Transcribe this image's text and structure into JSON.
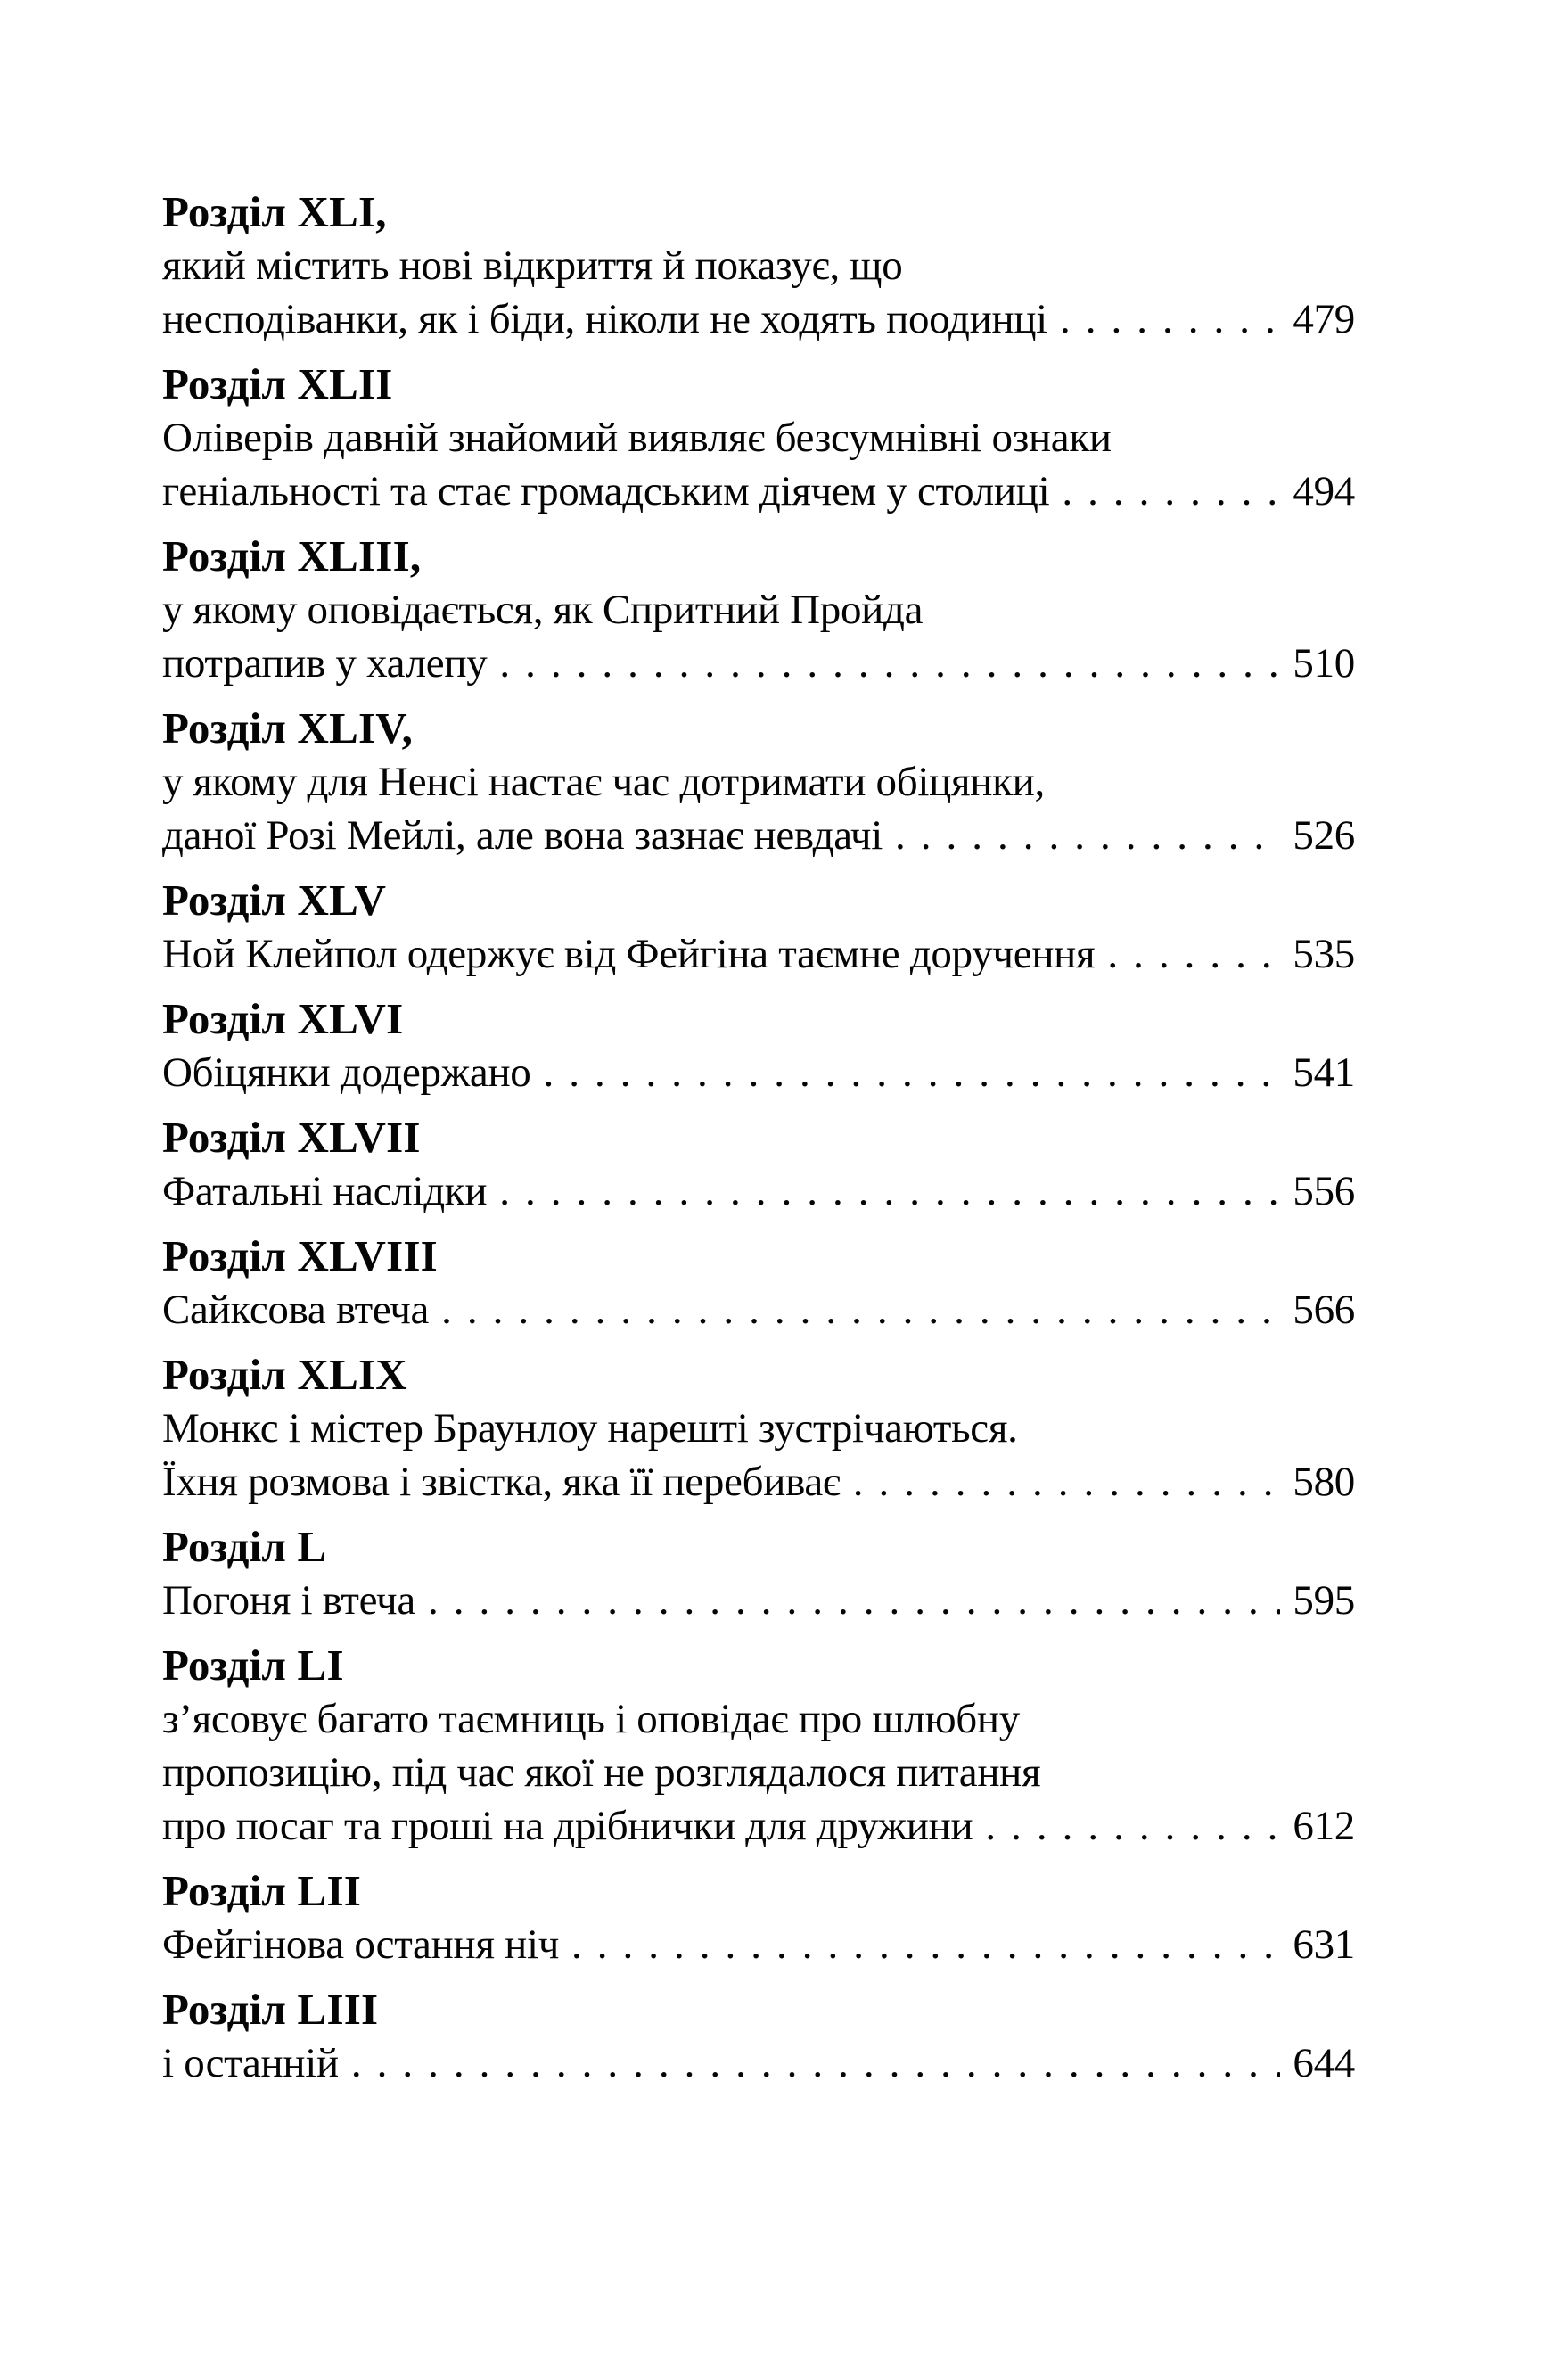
{
  "page": {
    "background": "#ffffff",
    "text_color": "#050505",
    "kind": "table-of-contents"
  },
  "toc": {
    "entries": [
      {
        "heading": "Розділ XLI,",
        "lines": [
          "який містить нові відкриття й показує, що"
        ],
        "last_line": "несподіванки, як і біди, ніколи не ходять поодинці",
        "page": "479"
      },
      {
        "heading": "Розділ XLII",
        "lines": [
          "Оліверів давній знайомий виявляє безсумнівні ознаки"
        ],
        "last_line": "геніальності та стає громадським діячем у столиці",
        "page": "494"
      },
      {
        "heading": "Розділ XLIII,",
        "lines": [
          "у якому оповідається, як Спритний Пройда"
        ],
        "last_line": "потрапив у халепу",
        "page": "510"
      },
      {
        "heading": "Розділ XLIV,",
        "lines": [
          "у якому для Ненсі настає час дотримати обіцянки,"
        ],
        "last_line": "даної Розі Мейлі, але вона зазнає невдачі",
        "page": "526"
      },
      {
        "heading": "Розділ XLV",
        "lines": [],
        "last_line": "Ной Клейпол одержує від Фейгіна таємне доручення",
        "page": "535"
      },
      {
        "heading": "Розділ XLVI",
        "lines": [],
        "last_line": "Обіцянки додержано",
        "page": "541"
      },
      {
        "heading": "Розділ XLVII",
        "lines": [],
        "last_line": "Фатальні наслідки",
        "page": "556"
      },
      {
        "heading": "Розділ XLVIII",
        "lines": [],
        "last_line": "Сайксова втеча",
        "page": "566"
      },
      {
        "heading": "Розділ XLIX",
        "lines": [
          "Монкс і містер Браунлоу нарешті зустрічаються."
        ],
        "last_line": "Їхня розмова і звістка, яка її перебиває",
        "page": "580"
      },
      {
        "heading": "Розділ L",
        "lines": [],
        "last_line": "Погоня і втеча",
        "page": "595"
      },
      {
        "heading": "Розділ LI",
        "lines": [
          "з’ясовує багато таємниць і оповідає про шлюбну",
          "пропозицію, під час якої не розглядалося питання"
        ],
        "last_line": "про посаг та гроші на дрібнички для дружини",
        "page": "612"
      },
      {
        "heading": "Розділ LII",
        "lines": [],
        "last_line": "Фейгінова остання ніч",
        "page": "631"
      },
      {
        "heading": "Розділ LIII",
        "lines": [],
        "last_line": "і останній",
        "page": "644"
      }
    ]
  }
}
